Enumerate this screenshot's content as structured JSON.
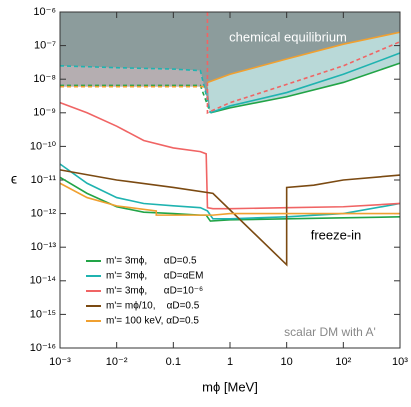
{
  "chart_data": {
    "type": "line",
    "xscale": "log",
    "yscale": "log",
    "xlabel": "mϕ [MeV]",
    "ylabel": "ϵ",
    "xlim": [
      0.001,
      1000
    ],
    "ylim": [
      1e-16,
      1e-06
    ],
    "xticks": [
      {
        "value": 0.001,
        "label": "10⁻³"
      },
      {
        "value": 0.01,
        "label": "10⁻²"
      },
      0.1,
      1,
      10,
      {
        "value": 100,
        "label": "10²"
      },
      {
        "value": 1000,
        "label": "10³"
      }
    ],
    "yticks": [
      {
        "value": 1e-06,
        "label": "10⁻⁶"
      },
      {
        "value": 1e-07,
        "label": "10⁻⁷"
      },
      {
        "value": 1e-08,
        "label": "10⁻⁸"
      },
      {
        "value": 1e-09,
        "label": "10⁻⁹"
      },
      {
        "value": 1e-10,
        "label": "10⁻¹⁰"
      },
      {
        "value": 1e-11,
        "label": "10⁻¹¹"
      },
      {
        "value": 1e-12,
        "label": "10⁻¹²"
      },
      {
        "value": 1e-13,
        "label": "10⁻¹³"
      },
      {
        "value": 1e-14,
        "label": "10⁻¹⁴"
      },
      {
        "value": 1e-15,
        "label": "10⁻¹⁵"
      },
      {
        "value": 1e-16,
        "label": "10⁻¹⁶"
      }
    ],
    "annotations": [
      "chemical equilibrium",
      "freeze-in",
      "scalar DM with A'"
    ],
    "series": [
      {
        "name": "m'= 3mϕ,      αD=0.5",
        "color": "#22a447",
        "lines": [
          {
            "style": "solid",
            "x": [
              0.001,
              0.003,
              0.01,
              0.03,
              0.1,
              0.3,
              0.38,
              0.45,
              1,
              10,
              100,
              1000
            ],
            "values": [
              1.2e-11,
              4e-12,
              1.6e-12,
              1.1e-12,
              1e-12,
              9e-13,
              9e-13,
              6e-13,
              6.5e-13,
              7e-13,
              7.5e-13,
              8e-13
            ]
          },
          {
            "style": "dashed",
            "x": [
              0.001,
              0.3,
              0.45
            ],
            "values": [
              6.5e-09,
              6.5e-09,
              1e-09
            ]
          },
          {
            "style": "solid",
            "x": [
              0.45,
              1,
              10,
              100,
              1000
            ],
            "values": [
              1e-09,
              1.4e-09,
              3e-09,
              8e-09,
              3e-08
            ]
          }
        ]
      },
      {
        "name": "m'= 3mϕ,      αD=αEM",
        "color": "#1fb3b0",
        "lines": [
          {
            "style": "solid",
            "x": [
              0.001,
              0.003,
              0.01,
              0.03,
              0.1,
              0.3,
              0.4,
              0.5,
              1,
              10,
              100,
              1000
            ],
            "values": [
              3e-11,
              8e-12,
              3e-12,
              2e-12,
              1.7e-12,
              1.5e-12,
              1.2e-12,
              7e-13,
              7e-13,
              8e-13,
              1e-12,
              2e-12
            ]
          },
          {
            "style": "dashed",
            "x": [
              0.001,
              0.01,
              0.1,
              0.3,
              0.45
            ],
            "values": [
              2.5e-08,
              2.2e-08,
              2e-08,
              1.8e-08,
              1e-09
            ]
          },
          {
            "style": "solid",
            "x": [
              0.45,
              1,
              10,
              100,
              1000
            ],
            "values": [
              1e-09,
              1.6e-09,
              4e-09,
              1.4e-08,
              6e-08
            ]
          }
        ]
      },
      {
        "name": "m'= 3mϕ,      αD=10⁻⁶",
        "color": "#f06464",
        "lines": [
          {
            "style": "solid",
            "x": [
              0.001,
              0.003,
              0.01,
              0.03,
              0.1,
              0.3,
              0.38,
              0.4,
              0.5,
              1,
              10,
              100,
              1000
            ],
            "values": [
              2e-09,
              1e-09,
              4e-10,
              1.5e-10,
              9e-11,
              7e-11,
              6e-11,
              1.5e-12,
              1.4e-12,
              1.4e-12,
              1.5e-12,
              1.6e-12,
              2e-12
            ]
          },
          {
            "style": "dashed",
            "x": [
              0.4,
              0.4,
              0.45,
              1,
              10,
              100,
              1000
            ],
            "values": [
              1e-06,
              1e-09,
              1.1e-09,
              2e-09,
              7e-09,
              2.5e-08,
              1.3e-07
            ]
          }
        ]
      },
      {
        "name": "m'= mϕ/10,    αD=0.5",
        "color": "#7b4a12",
        "lines": [
          {
            "style": "solid",
            "x": [
              0.001,
              0.01,
              0.1,
              0.5,
              10,
              10,
              30,
              100,
              1000
            ],
            "values": [
              2e-11,
              1e-11,
              6e-12,
              4e-12,
              3e-14,
              6e-12,
              7e-12,
              1e-11,
              1.4e-11
            ]
          }
        ]
      },
      {
        "name": "m'= 100 keV, αD=0.5",
        "color": "#f0a030",
        "lines": [
          {
            "style": "solid",
            "x": [
              0.001,
              0.003,
              0.01,
              0.05,
              0.05,
              0.1,
              0.5,
              1,
              10,
              100,
              1000
            ],
            "values": [
              8e-12,
              3e-12,
              1.7e-12,
              1.2e-12,
              9e-13,
              9e-13,
              9e-13,
              1e-12,
              1e-12,
              1e-12,
              1e-12
            ]
          },
          {
            "style": "dashed",
            "x": [
              0.001,
              0.4
            ],
            "values": [
              6e-09,
              6e-09
            ]
          },
          {
            "style": "solid",
            "x": [
              0.4,
              1,
              10,
              100,
              1000
            ],
            "values": [
              8e-09,
              1.4e-08,
              4e-08,
              1.1e-07,
              2.5e-07
            ]
          }
        ]
      }
    ]
  }
}
